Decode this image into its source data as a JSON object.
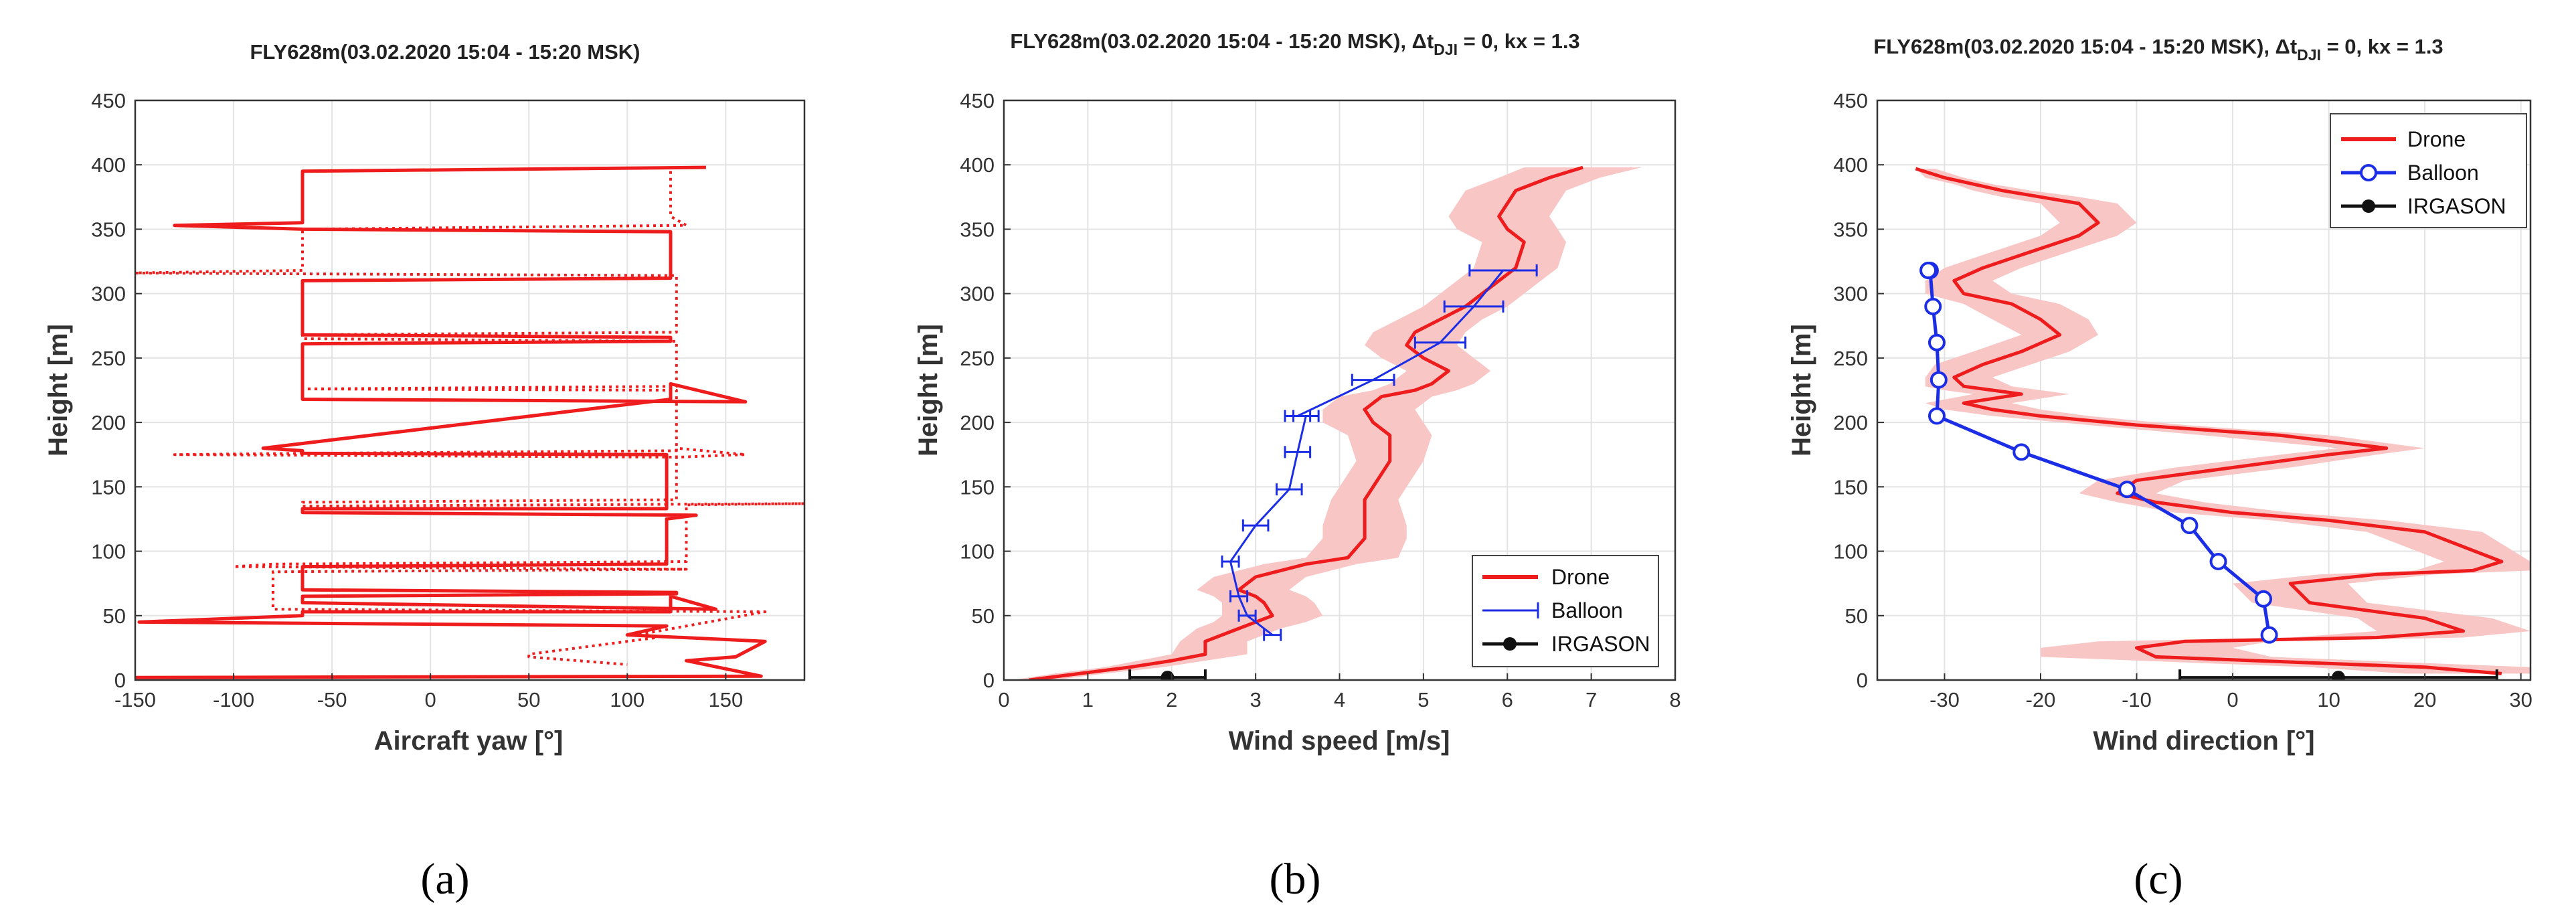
{
  "colors": {
    "drone": "#ee1c1c",
    "band": "#f9c6c6",
    "balloon": "#1b2ee6",
    "irgason": "#111111"
  },
  "chart_data": [
    {
      "id": "a",
      "type": "line",
      "panel_label": "(a)",
      "title": "FLY628m(03.02.2020 15:04 - 15:20 MSK)",
      "xlabel": "Aircraft yaw [°]",
      "ylabel": "Height [m]",
      "xlim": [
        -150,
        190
      ],
      "ylim": [
        0,
        450
      ],
      "xticks": [
        -150,
        -100,
        -50,
        0,
        50,
        100,
        150
      ],
      "yticks": [
        0,
        50,
        100,
        150,
        200,
        250,
        300,
        350,
        400,
        450
      ],
      "grid": true,
      "series": [
        {
          "name": "yaw (solid)",
          "style": "solid",
          "x": [
            140,
            -65,
            -65,
            -130,
            -65,
            122,
            122,
            -65,
            -65,
            122,
            122,
            -65,
            -65,
            160,
            122,
            122,
            -85,
            -65,
            -65,
            120,
            120,
            -65,
            -65,
            135,
            120,
            120,
            -65,
            -65,
            125,
            125,
            -65,
            -65,
            145,
            122,
            122,
            -65,
            -65,
            -148,
            120,
            100,
            170,
            155,
            130,
            168,
            -150
          ],
          "y": [
            398,
            395,
            355,
            353,
            350,
            348,
            312,
            310,
            268,
            266,
            263,
            261,
            218,
            216,
            230,
            218,
            180,
            178,
            176,
            175,
            133,
            133,
            130,
            128,
            125,
            90,
            88,
            70,
            68,
            67,
            65,
            60,
            55,
            65,
            53,
            53,
            50,
            45,
            42,
            35,
            30,
            18,
            15,
            3,
            2
          ]
        },
        {
          "name": "yaw (dotted)",
          "style": "dotted",
          "x": [
            122,
            122,
            130,
            -65,
            -65,
            -155,
            125,
            125,
            -65,
            -65,
            125,
            125,
            -65,
            125,
            125,
            -65,
            -130,
            125,
            125,
            160,
            125,
            125,
            -65,
            -65,
            190,
            130,
            130,
            -80,
            -100,
            130,
            -80,
            -80,
            170,
            105,
            115,
            50,
            50,
            100
          ],
          "y": [
            395,
            360,
            353,
            350,
            318,
            316,
            314,
            270,
            268,
            265,
            263,
            228,
            226,
            225,
            178,
            176,
            175,
            173,
            180,
            175,
            173,
            140,
            138,
            135,
            137,
            136,
            92,
            90,
            88,
            86,
            84,
            55,
            53,
            35,
            33,
            20,
            18,
            12
          ]
        }
      ]
    },
    {
      "id": "b",
      "type": "line",
      "panel_label": "(b)",
      "title": "FLY628m(03.02.2020 15:04 - 15:20 MSK), Δt",
      "title_sub": "DJI",
      "title_tail": " = 0, kx = 1.3",
      "xlabel": "Wind speed [m/s]",
      "ylabel": "Height [m]",
      "xlim": [
        0,
        8
      ],
      "ylim": [
        0,
        450
      ],
      "xticks": [
        0,
        1,
        2,
        3,
        4,
        5,
        6,
        7,
        8
      ],
      "yticks": [
        0,
        50,
        100,
        150,
        200,
        250,
        300,
        350,
        400,
        450
      ],
      "grid": true,
      "legend": {
        "placement": "bottom-right",
        "entries": [
          "Drone",
          "Balloon",
          "IRGASON"
        ]
      },
      "drone": {
        "name": "Drone",
        "x": [
          0.3,
          0.9,
          1.5,
          2.0,
          2.4,
          2.4,
          2.8,
          3.0,
          3.2,
          3.1,
          3.0,
          2.8,
          3.0,
          3.3,
          3.6,
          4.1,
          4.3,
          4.3,
          4.3,
          4.5,
          4.6,
          4.6,
          4.4,
          4.3,
          4.5,
          4.9,
          5.1,
          5.3,
          5.0,
          4.8,
          4.9,
          5.2,
          5.5,
          5.7,
          5.9,
          6.1,
          6.2,
          6.0,
          5.9,
          6.1,
          6.5,
          6.9
        ],
        "y": [
          0,
          5,
          10,
          15,
          20,
          30,
          40,
          45,
          50,
          60,
          65,
          70,
          80,
          85,
          90,
          95,
          110,
          120,
          140,
          160,
          170,
          190,
          200,
          210,
          220,
          225,
          230,
          240,
          250,
          260,
          270,
          280,
          290,
          300,
          310,
          320,
          340,
          350,
          360,
          380,
          390,
          398
        ]
      },
      "band": {
        "lower": [
          0.1,
          0.6,
          1.2,
          1.6,
          2.0,
          2.1,
          2.3,
          2.5,
          2.6,
          2.6,
          2.5,
          2.3,
          2.5,
          2.8,
          3.1,
          3.6,
          3.8,
          3.8,
          3.9,
          4.1,
          4.2,
          4.1,
          3.8,
          3.8,
          4.0,
          4.4,
          4.6,
          4.8,
          4.5,
          4.3,
          4.4,
          4.7,
          5.0,
          5.2,
          5.4,
          5.6,
          5.7,
          5.4,
          5.3,
          5.5,
          5.9,
          6.2
        ],
        "upper": [
          0.6,
          1.2,
          1.9,
          2.4,
          2.9,
          2.9,
          3.3,
          3.6,
          3.8,
          3.7,
          3.6,
          3.4,
          3.6,
          3.9,
          4.2,
          4.7,
          4.8,
          4.8,
          4.7,
          4.9,
          5.0,
          5.1,
          5.0,
          4.9,
          5.1,
          5.4,
          5.6,
          5.8,
          5.6,
          5.4,
          5.5,
          5.7,
          6.0,
          6.2,
          6.4,
          6.6,
          6.7,
          6.6,
          6.5,
          6.7,
          7.1,
          7.6
        ]
      },
      "balloon": {
        "name": "Balloon",
        "x": [
          3.2,
          2.9,
          2.8,
          2.7,
          3.0,
          3.4,
          3.5,
          3.6,
          3.5,
          4.4,
          5.2,
          5.6,
          5.95
        ],
        "y": [
          35,
          50,
          65,
          92,
          120,
          148,
          177,
          205,
          205,
          233,
          262,
          290,
          318
        ],
        "xerr": [
          0.1,
          0.1,
          0.1,
          0.1,
          0.15,
          0.15,
          0.15,
          0.15,
          0.15,
          0.25,
          0.3,
          0.35,
          0.4
        ]
      },
      "irgason": {
        "name": "IRGASON",
        "x": 1.95,
        "y": 2,
        "xerr_low": 1.5,
        "xerr_high": 2.4
      }
    },
    {
      "id": "c",
      "type": "line",
      "panel_label": "(c)",
      "title": "FLY628m(03.02.2020 15:04 - 15:20 MSK), Δt",
      "title_sub": "DJI",
      "title_tail": " = 0, kx = 1.3",
      "xlabel": "Wind direction [°]",
      "ylabel": "Height [m]",
      "xlim": [
        -37,
        31
      ],
      "ylim": [
        0,
        450
      ],
      "xticks": [
        -30,
        -20,
        -10,
        0,
        10,
        20,
        30
      ],
      "yticks": [
        0,
        50,
        100,
        150,
        200,
        250,
        300,
        350,
        400,
        450
      ],
      "grid": true,
      "legend": {
        "placement": "top-left",
        "entries": [
          "Drone",
          "Balloon",
          "IRGASON"
        ]
      },
      "drone": {
        "name": "Drone",
        "x": [
          -33,
          -30,
          -27,
          -24,
          -20,
          -16,
          -14,
          -16,
          -22,
          -26,
          -29,
          -28,
          -23,
          -20,
          -18,
          -22,
          -26,
          -29,
          -28,
          -25,
          -22,
          -28,
          -25,
          -20,
          -10,
          5,
          16,
          10,
          0,
          -10,
          -12,
          -8,
          0,
          10,
          20,
          28,
          25,
          15,
          6,
          8,
          20,
          24,
          15,
          -5,
          -10,
          -8,
          20,
          28
        ],
        "y": [
          397,
          390,
          385,
          380,
          375,
          370,
          355,
          345,
          330,
          320,
          310,
          300,
          292,
          280,
          268,
          255,
          245,
          235,
          228,
          225,
          222,
          215,
          210,
          205,
          198,
          190,
          180,
          175,
          165,
          155,
          145,
          138,
          130,
          124,
          115,
          92,
          85,
          82,
          75,
          60,
          48,
          38,
          33,
          30,
          25,
          18,
          10,
          5
        ]
      },
      "band": {
        "lower": [
          -33,
          -32,
          -29,
          -27,
          -24,
          -20,
          -18,
          -20,
          -26,
          -30,
          -32,
          -32,
          -28,
          -25,
          -22,
          -27,
          -31,
          -32,
          -32,
          -30,
          -27,
          -32,
          -30,
          -25,
          -15,
          -3,
          11,
          5,
          -6,
          -14,
          -16,
          -12,
          -6,
          4,
          14,
          22,
          19,
          9,
          0,
          2,
          13,
          15,
          6,
          -14,
          -20,
          -20,
          8,
          18
        ],
        "upper": [
          -31,
          -28,
          -25,
          -21,
          -16,
          -12,
          -10,
          -12,
          -18,
          -22,
          -25,
          -23,
          -18,
          -15,
          -14,
          -17,
          -21,
          -25,
          -23,
          -20,
          -17,
          -23,
          -20,
          -15,
          -5,
          10,
          20,
          15,
          6,
          -5,
          -8,
          -3,
          6,
          16,
          26,
          31,
          31,
          21,
          12,
          14,
          27,
          31,
          24,
          4,
          0,
          4,
          31,
          31
        ]
      },
      "balloon": {
        "name": "Balloon",
        "x": [
          3.8,
          3.2,
          -1.5,
          -4.5,
          -11,
          -22,
          -30.8,
          -30.6,
          -30.8,
          -31.2,
          -31.5,
          -31.7
        ],
        "y": [
          35,
          63,
          92,
          120,
          148,
          177,
          205,
          233,
          262,
          290,
          318,
          318
        ]
      },
      "irgason": {
        "name": "IRGASON",
        "x": 11,
        "y": 2,
        "xerr_low": -5.5,
        "xerr_high": 27.5
      }
    }
  ]
}
